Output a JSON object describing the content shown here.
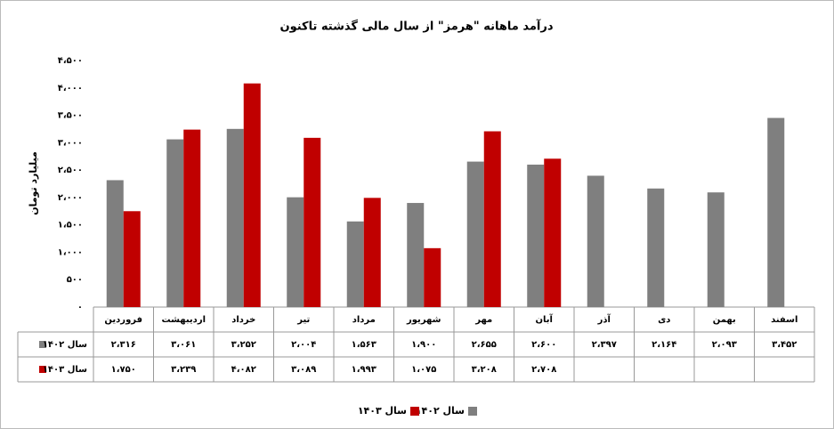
{
  "chart_data": {
    "type": "bar",
    "title": "درآمد ماهانه \"هرمز\" از سال مالی گذشته تاکنون",
    "y_label": "میلیارد تومان",
    "categories": [
      "فروردین",
      "اردیبهشت",
      "خرداد",
      "تیر",
      "مرداد",
      "شهریور",
      "مهر",
      "آبان",
      "آذر",
      "دی",
      "بهمن",
      "اسفند"
    ],
    "series": [
      {
        "name": "سال ۱۴۰۲",
        "color": "#7f7f7f",
        "values": [
          2316,
          3061,
          3252,
          2004,
          1563,
          1900,
          2655,
          2600,
          2397,
          2164,
          2093,
          3452
        ],
        "value_labels": [
          "۲،۳۱۶",
          "۳،۰۶۱",
          "۳،۲۵۲",
          "۲،۰۰۴",
          "۱،۵۶۳",
          "۱،۹۰۰",
          "۲،۶۵۵",
          "۲،۶۰۰",
          "۲،۳۹۷",
          "۲،۱۶۴",
          "۲،۰۹۳",
          "۳،۴۵۲"
        ]
      },
      {
        "name": "سال ۱۴۰۳",
        "color": "#c00000",
        "values": [
          1750,
          3239,
          4082,
          3089,
          1993,
          1075,
          3208,
          2708,
          null,
          null,
          null,
          null
        ],
        "value_labels": [
          "۱،۷۵۰",
          "۳،۲۳۹",
          "۴،۰۸۲",
          "۳،۰۸۹",
          "۱،۹۹۳",
          "۱،۰۷۵",
          "۳،۲۰۸",
          "۲،۷۰۸",
          null,
          null,
          null,
          null
        ]
      }
    ],
    "ylim": [
      0,
      4500
    ],
    "yticks": [
      {
        "value": 0,
        "label": "۰"
      },
      {
        "value": 500,
        "label": "۵۰۰"
      },
      {
        "value": 1000,
        "label": "۱،۰۰۰"
      },
      {
        "value": 1500,
        "label": "۱،۵۰۰"
      },
      {
        "value": 2000,
        "label": "۲،۰۰۰"
      },
      {
        "value": 2500,
        "label": "۲،۵۰۰"
      },
      {
        "value": 3000,
        "label": "۳،۰۰۰"
      },
      {
        "value": 3500,
        "label": "۳،۵۰۰"
      },
      {
        "value": 4000,
        "label": "۴،۰۰۰"
      },
      {
        "value": 4500,
        "label": "۴،۵۰۰"
      }
    ],
    "grid": false,
    "legend": "bottom"
  }
}
